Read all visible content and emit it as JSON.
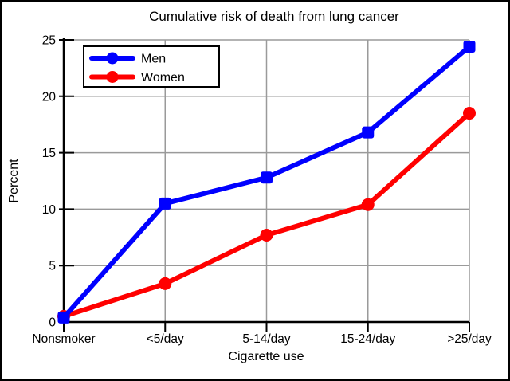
{
  "chart_data": {
    "type": "line",
    "title": "Cumulative risk of death from lung cancer",
    "xlabel": "Cigarette use",
    "ylabel": "Percent",
    "categories": [
      "Nonsmoker",
      "<5/day",
      "5-14/day",
      "15-24/day",
      ">25/day"
    ],
    "series": [
      {
        "name": "Men",
        "color": "#0000ff",
        "marker": "square",
        "values": [
          0.4,
          10.5,
          12.8,
          16.8,
          24.4
        ]
      },
      {
        "name": "Women",
        "color": "#ff0000",
        "marker": "circle",
        "values": [
          0.5,
          3.4,
          7.7,
          10.4,
          18.5
        ]
      }
    ],
    "ylim": [
      0,
      25
    ],
    "yticks": [
      0,
      5,
      10,
      15,
      20,
      25
    ],
    "grid": true,
    "legend_position": "top-left"
  },
  "colors": {
    "grid": "#9a9a9a",
    "axis": "#000000",
    "background": "#ffffff",
    "frame_border": "#000000"
  }
}
